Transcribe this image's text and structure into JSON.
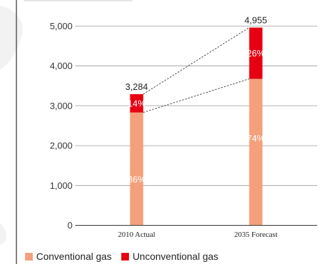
{
  "chart_data": {
    "type": "bar",
    "stacked": true,
    "categories": [
      "2010 Actual",
      "2035 Forecast"
    ],
    "series": [
      {
        "name": "Conventional gas",
        "values": [
          2824,
          3667
        ],
        "shares": [
          "86%",
          "74%"
        ],
        "color": "#f4a07a"
      },
      {
        "name": "Unconventional gas",
        "values": [
          460,
          1288
        ],
        "shares": [
          "14%",
          "26%"
        ],
        "color": "#e60012"
      }
    ],
    "totals": [
      3284,
      4955
    ],
    "total_labels": [
      "3,284",
      "4,955"
    ],
    "ylim": [
      0,
      5000
    ],
    "yticks": [
      0,
      1000,
      2000,
      3000,
      4000,
      5000
    ],
    "ytick_labels": [
      "0",
      "1,000",
      "2,000",
      "3,000",
      "4,000",
      "5,000"
    ],
    "grid": true,
    "legend_position": "bottom-left",
    "connector_lines": "dashed"
  },
  "legend": {
    "items": [
      {
        "label": "Conventional gas",
        "color": "#f4a07a"
      },
      {
        "label": "Unconventional gas",
        "color": "#e60012"
      }
    ]
  }
}
